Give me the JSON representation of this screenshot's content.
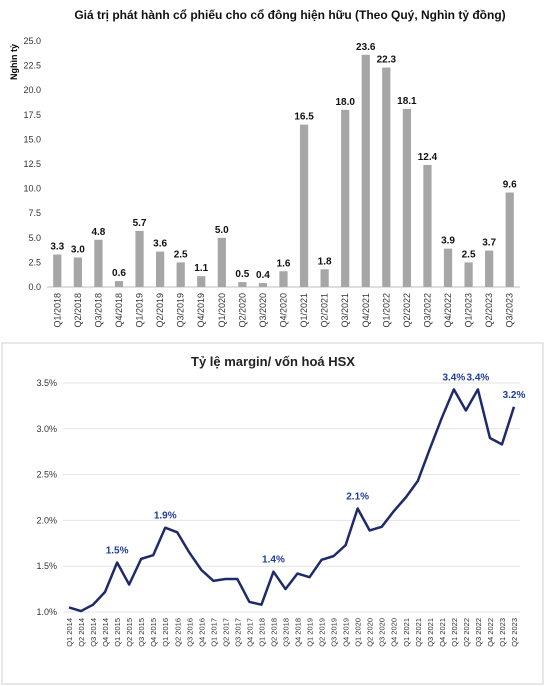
{
  "chart_data": [
    {
      "type": "bar",
      "title": "Giá trị phát hành cổ phiếu cho cổ đông hiện hữu (Theo Quý, Nghìn tỷ đồng)",
      "y_label": "Nghìn tỷ",
      "categories": [
        "Q1/2018",
        "Q2/2018",
        "Q3/2018",
        "Q4/2018",
        "Q1/2019",
        "Q2/2019",
        "Q3/2019",
        "Q4/2019",
        "Q1/2020",
        "Q2/2020",
        "Q3/2020",
        "Q4/2020",
        "Q1/2021",
        "Q2/2021",
        "Q3/2021",
        "Q4/2021",
        "Q1/2022",
        "Q2/2022",
        "Q3/2022",
        "Q4/2022",
        "Q1/2023",
        "Q2/2023",
        "Q3/2023"
      ],
      "values": [
        3.3,
        3.0,
        4.8,
        0.6,
        5.7,
        3.6,
        2.5,
        1.1,
        5.0,
        0.5,
        0.4,
        1.6,
        16.5,
        1.8,
        18.0,
        23.6,
        22.3,
        18.1,
        12.4,
        3.9,
        2.5,
        3.7,
        9.6
      ],
      "value_labels": [
        "3.3",
        "3.0",
        "4.8",
        "0.6",
        "5.7",
        "3.6",
        "2.5",
        "1.1",
        "5.0",
        "0.5",
        "0.4",
        "1.6",
        "16.5",
        "1.8",
        "18.0",
        "23.6",
        "22.3",
        "18.1",
        "12.4",
        "3.9",
        "2.5",
        "3.7",
        "9.6"
      ],
      "color": "#a6a6a6",
      "ylim": [
        0,
        25
      ],
      "yticks": [
        {
          "value": 0,
          "label": "0.0"
        },
        {
          "value": 2.5,
          "label": "2.5"
        },
        {
          "value": 5,
          "label": "5.0"
        },
        {
          "value": 7.5,
          "label": "7.5"
        },
        {
          "value": 10,
          "label": "10.0"
        },
        {
          "value": 12.5,
          "label": "12.5"
        },
        {
          "value": 15,
          "label": "15.0"
        },
        {
          "value": 17.5,
          "label": "17.5"
        },
        {
          "value": 20,
          "label": "20.0"
        },
        {
          "value": 22.5,
          "label": "22.5"
        },
        {
          "value": 25,
          "label": "25.0"
        }
      ],
      "grid": false
    },
    {
      "type": "line",
      "title": "Tỷ lệ margin/ vốn hoá HSX",
      "categories": [
        "Q1 2014",
        "Q2 2014",
        "Q3 2014",
        "Q4 2014",
        "Q1 2015",
        "Q2 2015",
        "Q3 2015",
        "Q4 2015",
        "Q1 2016",
        "Q2 2016",
        "Q3 2016",
        "Q4 2016",
        "Q1 2017",
        "Q2 2017",
        "Q3 2017",
        "Q4 2017",
        "Q1 2018",
        "Q2 2018",
        "Q3 2018",
        "Q4 2018",
        "Q1 2019",
        "Q2 2019",
        "Q3 2019",
        "Q4 2019",
        "Q1 2020",
        "Q2 2020",
        "Q3 2020",
        "Q4 2020",
        "Q1 2021",
        "Q2 2021",
        "Q3 2021",
        "Q4 2021",
        "Q1 2022",
        "Q2 2022",
        "Q3 2022",
        "Q4 2022",
        "Q1 2023",
        "Q2 2023"
      ],
      "values": [
        1.05,
        1.01,
        1.08,
        1.22,
        1.54,
        1.3,
        1.58,
        1.62,
        1.92,
        1.87,
        1.65,
        1.46,
        1.34,
        1.36,
        1.36,
        1.11,
        1.08,
        1.44,
        1.25,
        1.42,
        1.38,
        1.57,
        1.61,
        1.73,
        2.13,
        1.89,
        1.93,
        2.1,
        2.25,
        2.43,
        2.78,
        3.12,
        3.43,
        3.2,
        3.43,
        2.9,
        2.83,
        3.24
      ],
      "value_labels": [
        null,
        null,
        null,
        null,
        "1.5%",
        null,
        null,
        null,
        "1.9%",
        null,
        null,
        null,
        null,
        null,
        null,
        null,
        null,
        "1.4%",
        null,
        null,
        null,
        null,
        null,
        null,
        "2.1%",
        null,
        null,
        null,
        null,
        null,
        null,
        null,
        "3.4%",
        null,
        "3.4%",
        null,
        null,
        "3.2%"
      ],
      "color": "#1f2a6b",
      "ylim": [
        1.0,
        3.5
      ],
      "yticks": [
        {
          "value": 1.0,
          "label": "1.0%"
        },
        {
          "value": 1.5,
          "label": "1.5%"
        },
        {
          "value": 2.0,
          "label": "2.0%"
        },
        {
          "value": 2.5,
          "label": "2.5%"
        },
        {
          "value": 3.0,
          "label": "3.0%"
        },
        {
          "value": 3.5,
          "label": "3.5%"
        }
      ],
      "grid": true
    }
  ]
}
